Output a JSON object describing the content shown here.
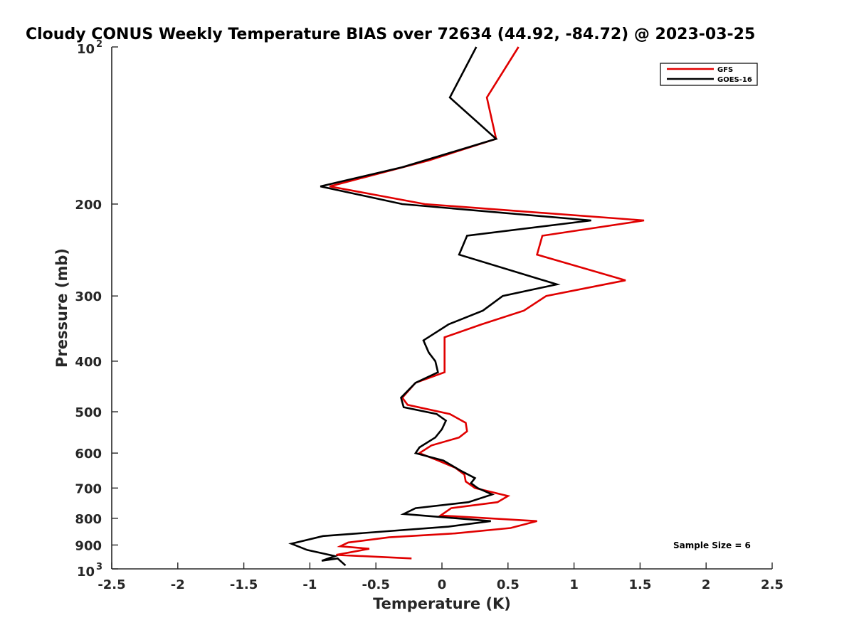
{
  "chart_data": {
    "type": "line",
    "title": "Cloudy CONUS Weekly Temperature BIAS over 72634 (44.92, -84.72) @ 2023-03-25",
    "xlabel": "Temperature (K)",
    "ylabel": "Pressure (mb)",
    "xlim": [
      -2.5,
      2.5
    ],
    "ylim": [
      100,
      1000
    ],
    "y_scale": "log",
    "y_reversed": true,
    "grid": false,
    "legend_position": "top-right",
    "x_ticks": [
      -2.5,
      -2,
      -1.5,
      -1,
      -0.5,
      0,
      0.5,
      1,
      1.5,
      2,
      2.5
    ],
    "x_tick_labels": [
      "-2.5",
      "-2",
      "-1.5",
      "-1",
      "-0.5",
      "0",
      "0.5",
      "1",
      "1.5",
      "2",
      "2.5"
    ],
    "y_ticks": [
      200,
      300,
      400,
      500,
      600,
      700,
      800,
      900
    ],
    "y_tick_labels": [
      "200",
      "300",
      "400",
      "500",
      "600",
      "700",
      "800",
      "900"
    ],
    "y_end_labels": {
      "top_base": "10",
      "top_exp": "2",
      "bottom_base": "10",
      "bottom_exp": "3"
    },
    "annotation": "Sample Size = 6",
    "series": [
      {
        "name": "GFS",
        "color": "#e00000",
        "points": [
          [
            0.58,
            100
          ],
          [
            0.34,
            125
          ],
          [
            0.41,
            150
          ],
          [
            -0.1,
            165
          ],
          [
            -0.85,
            185
          ],
          [
            -0.13,
            200
          ],
          [
            1.53,
            215
          ],
          [
            0.76,
            230
          ],
          [
            0.72,
            250
          ],
          [
            1.39,
            280
          ],
          [
            0.79,
            300
          ],
          [
            0.62,
            320
          ],
          [
            0.3,
            340
          ],
          [
            0.02,
            360
          ],
          [
            0.02,
            400
          ],
          [
            0.02,
            420
          ],
          [
            -0.2,
            440
          ],
          [
            -0.3,
            470
          ],
          [
            -0.26,
            485
          ],
          [
            0.06,
            505
          ],
          [
            0.18,
            525
          ],
          [
            0.19,
            545
          ],
          [
            0.13,
            560
          ],
          [
            -0.08,
            580
          ],
          [
            -0.17,
            600
          ],
          [
            -0.03,
            620
          ],
          [
            0.1,
            640
          ],
          [
            0.17,
            660
          ],
          [
            0.18,
            680
          ],
          [
            0.25,
            700
          ],
          [
            0.5,
            725
          ],
          [
            0.42,
            745
          ],
          [
            0.07,
            765
          ],
          [
            -0.01,
            790
          ],
          [
            0.72,
            810
          ],
          [
            0.52,
            835
          ],
          [
            0.1,
            855
          ],
          [
            -0.4,
            870
          ],
          [
            -0.71,
            890
          ],
          [
            -0.77,
            905
          ],
          [
            -0.55,
            915
          ],
          [
            -0.8,
            940
          ],
          [
            -0.23,
            955
          ]
        ]
      },
      {
        "name": "GOES-16",
        "color": "#000000",
        "points": [
          [
            0.26,
            100
          ],
          [
            0.06,
            125
          ],
          [
            0.41,
            150
          ],
          [
            -0.3,
            170
          ],
          [
            -0.92,
            185
          ],
          [
            -0.3,
            200
          ],
          [
            1.13,
            215
          ],
          [
            0.19,
            230
          ],
          [
            0.13,
            250
          ],
          [
            0.87,
            285
          ],
          [
            0.46,
            300
          ],
          [
            0.31,
            320
          ],
          [
            0.05,
            340
          ],
          [
            -0.14,
            365
          ],
          [
            -0.1,
            385
          ],
          [
            -0.05,
            400
          ],
          [
            -0.03,
            420
          ],
          [
            -0.2,
            440
          ],
          [
            -0.31,
            470
          ],
          [
            -0.29,
            490
          ],
          [
            -0.04,
            505
          ],
          [
            0.03,
            520
          ],
          [
            0.0,
            540
          ],
          [
            -0.05,
            560
          ],
          [
            -0.17,
            585
          ],
          [
            -0.2,
            600
          ],
          [
            0.01,
            620
          ],
          [
            0.15,
            650
          ],
          [
            0.25,
            670
          ],
          [
            0.22,
            685
          ],
          [
            0.27,
            700
          ],
          [
            0.38,
            720
          ],
          [
            0.2,
            745
          ],
          [
            -0.2,
            765
          ],
          [
            -0.29,
            785
          ],
          [
            0.37,
            810
          ],
          [
            0.05,
            830
          ],
          [
            -0.9,
            865
          ],
          [
            -1.14,
            895
          ],
          [
            -1.02,
            920
          ],
          [
            -0.81,
            945
          ],
          [
            -0.91,
            965
          ],
          [
            -0.79,
            955
          ],
          [
            -0.73,
            985
          ]
        ]
      }
    ]
  }
}
